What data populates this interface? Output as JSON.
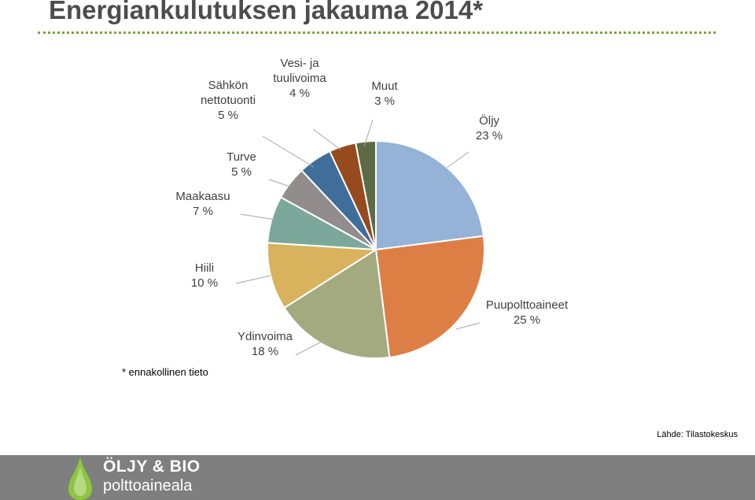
{
  "title": "Energiankulutuksen jakauma 2014*",
  "footnote": "* ennakollinen tieto",
  "source": "Lähde: Tilastokeskus",
  "logo": {
    "line1": "ÖLJY & BIO",
    "line2": "polttoaineala"
  },
  "colors": {
    "title_rule": "#7aa63a",
    "footer_bar": "#7f7f7f",
    "logo_drop": "#8cc63f"
  },
  "chart_data": {
    "type": "pie",
    "title": "Energiankulutuksen jakauma 2014*",
    "start_angle_deg": 0,
    "direction": "clockwise",
    "slices": [
      {
        "label": "Öljy",
        "value": 23,
        "value_label": "23 %",
        "color": "#95b3d7"
      },
      {
        "label": "Puupolttoaineet",
        "value": 25,
        "value_label": "25 %",
        "color": "#dd7e45"
      },
      {
        "label": "Ydinvoima",
        "value": 18,
        "value_label": "18 %",
        "color": "#a3aa80"
      },
      {
        "label": "Hiili",
        "value": 10,
        "value_label": "10 %",
        "color": "#d8b25c"
      },
      {
        "label": "Maakaasu",
        "value": 7,
        "value_label": "7 %",
        "color": "#7ba89a"
      },
      {
        "label": "Turve",
        "value": 5,
        "value_label": "5 %",
        "color": "#938c8c"
      },
      {
        "label": "Sähkön nettotuonti",
        "value": 5,
        "value_label": "5 %",
        "color": "#3f6e9a"
      },
      {
        "label": "Vesi- ja tuulivoima",
        "value": 4,
        "value_label": "4 %",
        "color": "#974a1d"
      },
      {
        "label": "Muut",
        "value": 3,
        "value_label": "3 %",
        "color": "#5e6a45"
      }
    ]
  }
}
